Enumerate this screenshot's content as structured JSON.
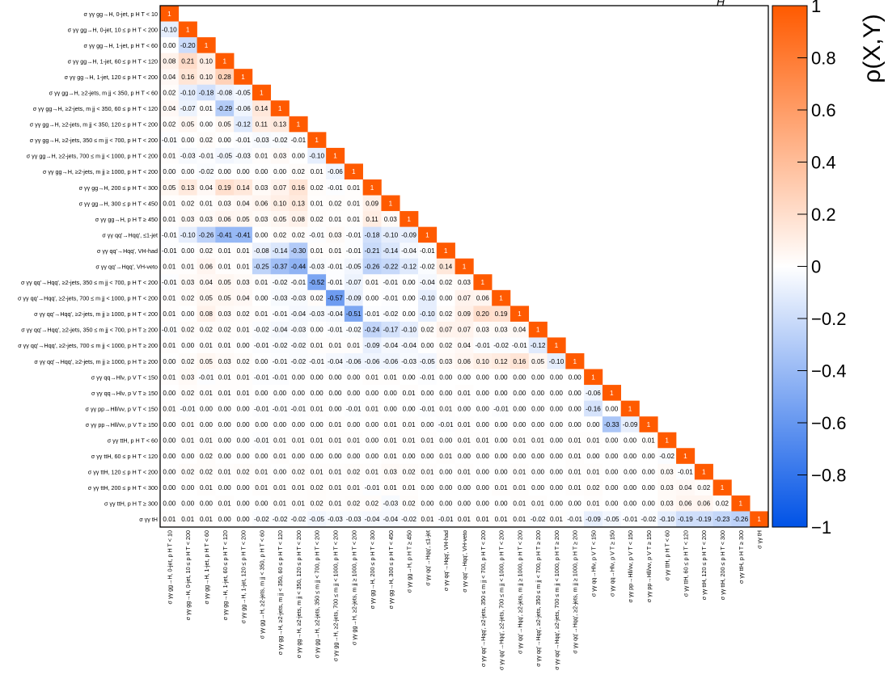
{
  "chart_data": {
    "type": "heatmap",
    "title": "",
    "title_fragment": "H",
    "colorbar_label": "ρ(X,Y)",
    "colorbar_ticks": [
      "1",
      "0.8",
      "0.6",
      "0.4",
      "0.2",
      "0",
      "−0.2",
      "−0.4",
      "−0.6",
      "−0.8",
      "−1"
    ],
    "zlim": [
      -1,
      1
    ],
    "colors": {
      "positive": "#ff5a00",
      "zero": "#ffffff",
      "negative": "#0052e6"
    },
    "labels": [
      "σ γγ gg→H, 0-jet, p H T < 10",
      "σ γγ gg→H, 0-jet, 10 ≤ p H T < 200",
      "σ γγ gg→H, 1-jet, p H T < 60",
      "σ γγ gg→H, 1-jet, 60 ≤ p H T < 120",
      "σ γγ gg→H, 1-jet, 120 ≤ p H T < 200",
      "σ γγ gg→H, ≥2-jets, m jj < 350, p H T < 60",
      "σ γγ gg→H, ≥2-jets, m jj < 350, 60 ≤ p H T < 120",
      "σ γγ gg→H, ≥2-jets, m jj < 350, 120 ≤ p H T < 200",
      "σ γγ gg→H, ≥2-jets, 350 ≤ m jj < 700, p H T < 200",
      "σ γγ gg→H, ≥2-jets, 700 ≤ m jj < 1000, p H T < 200",
      "σ γγ gg→H, ≥2-jets, m jj ≥ 1000, p H T < 200",
      "σ γγ gg→H, 200 ≤ p H T < 300",
      "σ γγ gg→H, 300 ≤ p H T < 450",
      "σ γγ gg→H, p H T ≥ 450",
      "σ γγ qq'→Hqq', ≤1-jet",
      "σ γγ qq'→Hqq', VH-had",
      "σ γγ qq'→Hqq', VH-veto",
      "σ γγ qq'→Hqq', ≥2-jets, 350 ≤ m jj < 700, p H T < 200",
      "σ γγ qq'→Hqq', ≥2-jets, 700 ≤ m jj < 1000, p H T < 200",
      "σ γγ qq'→Hqq', ≥2-jets, m jj ≥ 1000, p H T < 200",
      "σ γγ qq'→Hqq', ≥2-jets, 350 ≤ m jj < 700, p H T ≥ 200",
      "σ γγ qq'→Hqq', ≥2-jets, 700 ≤ m jj < 1000, p H T ≥ 200",
      "σ γγ qq'→Hqq', ≥2-jets, m jj ≥ 1000, p H T ≥ 200",
      "σ γγ qq→Hlν, p V T < 150",
      "σ γγ qq→Hlν, p V T ≥ 150",
      "σ γγ pp→Hll/νν, p V T < 150",
      "σ γγ pp→Hll/νν, p V T ≥ 150",
      "σ γγ ttH, p H T < 60",
      "σ γγ ttH, 60 ≤ p H T < 120",
      "σ γγ ttH, 120 ≤ p H T < 200",
      "σ γγ ttH, 200 ≤ p H T < 300",
      "σ γγ ttH, p H T ≥ 300",
      "σ γγ tH"
    ],
    "matrix": [
      [
        1
      ],
      [
        -0.1,
        1
      ],
      [
        0.0,
        -0.2,
        1
      ],
      [
        0.08,
        0.21,
        0.1,
        1
      ],
      [
        0.04,
        0.16,
        0.1,
        0.28,
        1
      ],
      [
        0.02,
        -0.1,
        -0.18,
        -0.08,
        -0.05,
        1
      ],
      [
        0.04,
        -0.07,
        0.01,
        -0.29,
        -0.06,
        0.14,
        1
      ],
      [
        0.02,
        0.05,
        0.0,
        0.05,
        -0.12,
        0.11,
        0.13,
        1
      ],
      [
        -0.01,
        0.0,
        0.02,
        0.0,
        -0.01,
        -0.03,
        -0.02,
        -0.01,
        1
      ],
      [
        0.01,
        -0.03,
        -0.01,
        -0.05,
        -0.03,
        0.01,
        0.03,
        0.0,
        -0.1,
        1
      ],
      [
        0.0,
        0.0,
        -0.02,
        0.0,
        0.0,
        0.0,
        0.0,
        0.02,
        0.01,
        -0.06,
        1
      ],
      [
        0.05,
        0.13,
        0.04,
        0.19,
        0.14,
        0.03,
        0.07,
        0.16,
        0.02,
        -0.01,
        0.01,
        1
      ],
      [
        0.01,
        0.02,
        0.01,
        0.03,
        0.04,
        0.06,
        0.1,
        0.13,
        0.01,
        0.02,
        0.01,
        0.09,
        1
      ],
      [
        0.01,
        0.03,
        0.03,
        0.06,
        0.05,
        0.03,
        0.05,
        0.08,
        0.02,
        0.01,
        0.01,
        0.11,
        0.03,
        1
      ],
      [
        -0.01,
        -0.1,
        -0.26,
        -0.41,
        -0.41,
        0.0,
        0.02,
        0.02,
        -0.01,
        0.03,
        -0.01,
        -0.18,
        -0.1,
        -0.09,
        1
      ],
      [
        -0.01,
        0.0,
        0.02,
        0.01,
        0.01,
        -0.08,
        -0.14,
        -0.3,
        0.01,
        0.01,
        -0.01,
        -0.21,
        -0.14,
        -0.04,
        -0.01,
        1
      ],
      [
        0.01,
        0.01,
        0.06,
        0.01,
        0.01,
        -0.25,
        -0.37,
        -0.44,
        -0.03,
        -0.01,
        -0.05,
        -0.26,
        -0.22,
        -0.12,
        -0.02,
        0.14,
        1
      ],
      [
        -0.01,
        0.03,
        0.04,
        0.05,
        0.03,
        0.01,
        -0.02,
        -0.01,
        -0.52,
        -0.01,
        -0.07,
        0.01,
        -0.01,
        0.0,
        -0.04,
        0.02,
        0.03,
        1
      ],
      [
        0.01,
        0.02,
        0.05,
        0.05,
        0.04,
        0.0,
        -0.03,
        -0.03,
        0.02,
        -0.57,
        -0.09,
        0.0,
        -0.01,
        0.0,
        -0.1,
        0.0,
        0.07,
        0.06,
        1
      ],
      [
        0.01,
        0.0,
        0.08,
        0.03,
        0.02,
        0.01,
        -0.01,
        -0.04,
        -0.03,
        -0.04,
        -0.51,
        -0.01,
        -0.02,
        0.0,
        -0.1,
        0.02,
        0.09,
        0.2,
        0.19,
        1
      ],
      [
        -0.01,
        0.02,
        0.02,
        0.02,
        0.01,
        -0.02,
        -0.04,
        -0.03,
        0.0,
        -0.01,
        -0.02,
        -0.24,
        -0.17,
        -0.1,
        0.02,
        0.07,
        0.07,
        0.03,
        0.03,
        0.04,
        1
      ],
      [
        0.01,
        0.0,
        0.01,
        0.01,
        0.0,
        -0.01,
        -0.02,
        -0.02,
        0.01,
        0.01,
        0.01,
        -0.09,
        -0.04,
        -0.04,
        0.0,
        0.02,
        0.04,
        -0.01,
        -0.02,
        -0.01,
        -0.12,
        1
      ],
      [
        0.0,
        0.02,
        0.05,
        0.03,
        0.02,
        0.0,
        -0.01,
        -0.02,
        -0.01,
        -0.04,
        -0.06,
        -0.06,
        -0.06,
        -0.03,
        -0.05,
        0.03,
        0.06,
        0.1,
        0.12,
        0.16,
        0.05,
        -0.1,
        1
      ],
      [
        0.01,
        0.03,
        -0.01,
        0.01,
        0.01,
        -0.01,
        -0.01,
        0.0,
        0.0,
        0.0,
        0.0,
        0.01,
        0.01,
        0.0,
        -0.01,
        0.0,
        0.0,
        0.0,
        0.0,
        0.0,
        0.0,
        0.0,
        0.0,
        1
      ],
      [
        0.0,
        0.02,
        0.01,
        0.01,
        0.01,
        0.0,
        0.0,
        0.0,
        0.0,
        0.0,
        0.0,
        0.0,
        0.0,
        0.01,
        0.0,
        0.0,
        0.01,
        0.0,
        0.0,
        0.0,
        0.0,
        0.0,
        0.0,
        -0.06,
        1
      ],
      [
        0.01,
        -0.01,
        0.0,
        0.0,
        0.0,
        -0.01,
        -0.01,
        -0.01,
        0.01,
        0.0,
        -0.01,
        0.01,
        0.0,
        0.0,
        -0.01,
        0.01,
        0.0,
        0.0,
        -0.01,
        0.0,
        0.0,
        0.0,
        0.0,
        -0.16,
        0.0,
        1
      ],
      [
        0.0,
        0.01,
        0.0,
        0.0,
        0.0,
        0.0,
        0.0,
        0.0,
        0.0,
        0.01,
        0.0,
        0.0,
        0.01,
        0.01,
        0.0,
        -0.01,
        0.01,
        0.0,
        0.0,
        0.0,
        0.0,
        0.0,
        0.0,
        0.0,
        -0.33,
        -0.09,
        1
      ],
      [
        0.0,
        0.01,
        0.01,
        0.0,
        0.0,
        -0.01,
        0.01,
        0.01,
        0.01,
        0.01,
        0.01,
        0.0,
        0.01,
        0.01,
        0.01,
        0.0,
        0.01,
        0.01,
        0.0,
        0.01,
        0.01,
        0.0,
        0.01,
        0.01,
        0.0,
        0.0,
        0.01,
        1
      ],
      [
        0.0,
        0.0,
        0.02,
        0.0,
        0.0,
        0.0,
        0.01,
        0.0,
        0.0,
        0.0,
        0.0,
        0.0,
        0.01,
        0.0,
        0.0,
        0.01,
        0.0,
        0.0,
        0.0,
        0.0,
        0.0,
        0.0,
        0.01,
        0.0,
        0.0,
        0.0,
        0.0,
        -0.02,
        1
      ],
      [
        0.0,
        0.02,
        0.02,
        0.01,
        0.02,
        0.01,
        0.0,
        0.02,
        0.01,
        0.01,
        0.02,
        0.01,
        0.03,
        0.02,
        0.01,
        0.0,
        0.01,
        0.0,
        0.0,
        0.01,
        0.0,
        0.0,
        0.01,
        0.01,
        0.0,
        0.0,
        0.0,
        0.03,
        -0.01,
        1
      ],
      [
        0.0,
        0.0,
        0.01,
        0.0,
        0.0,
        0.01,
        0.01,
        0.01,
        0.02,
        0.01,
        0.01,
        -0.01,
        0.01,
        0.01,
        0.0,
        0.0,
        0.0,
        0.0,
        0.01,
        0.01,
        0.0,
        0.0,
        0.01,
        0.02,
        0.0,
        0.0,
        0.0,
        0.03,
        0.04,
        0.02,
        1
      ],
      [
        0.0,
        0.0,
        0.0,
        0.01,
        0.0,
        0.0,
        0.01,
        0.01,
        0.02,
        0.01,
        0.02,
        0.02,
        -0.03,
        0.02,
        0.0,
        0.0,
        0.0,
        0.0,
        0.0,
        0.01,
        0.01,
        0.0,
        0.0,
        0.01,
        0.0,
        0.0,
        0.0,
        0.03,
        0.06,
        0.06,
        0.02,
        1
      ],
      [
        0.01,
        0.01,
        0.01,
        0.0,
        0.0,
        -0.02,
        -0.02,
        -0.02,
        -0.05,
        -0.03,
        -0.03,
        -0.04,
        -0.04,
        -0.02,
        0.01,
        -0.01,
        0.01,
        0.01,
        0.01,
        0.01,
        -0.02,
        0.01,
        -0.01,
        -0.09,
        -0.05,
        -0.01,
        -0.02,
        -0.1,
        -0.19,
        -0.19,
        -0.23,
        -0.26,
        1
      ]
    ]
  }
}
